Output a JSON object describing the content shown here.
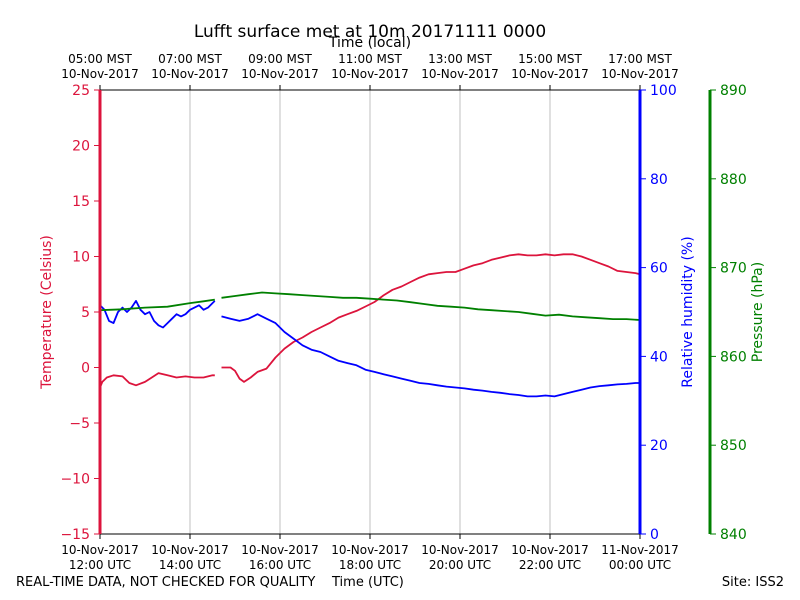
{
  "footer": {
    "disclaimer": "REAL-TIME DATA, NOT CHECKED FOR QUALITY",
    "site": "Site: ISS2"
  },
  "chart_data": {
    "type": "line",
    "title": "Lufft surface met at 10m 20171111 0000",
    "xlabel": "Time (UTC)",
    "x2label": "Time (local)",
    "ylabel": "Temperature (Celsius)",
    "y2label": "Relative humidity (%)",
    "y3label": "Pressure (hPa)",
    "xlim": [
      12,
      24
    ],
    "ylim": [
      -15,
      25
    ],
    "y2lim": [
      0,
      100
    ],
    "y3lim": [
      840,
      890
    ],
    "grid": "vertical",
    "colors": {
      "temperature": "#dc143c",
      "humidity": "#0000ff",
      "pressure": "#008000"
    },
    "x_ticks": [
      12,
      14,
      16,
      18,
      20,
      22,
      24
    ],
    "x_tick_labels": [
      [
        "10-Nov-2017",
        "12:00 UTC"
      ],
      [
        "10-Nov-2017",
        "14:00 UTC"
      ],
      [
        "10-Nov-2017",
        "16:00 UTC"
      ],
      [
        "10-Nov-2017",
        "18:00 UTC"
      ],
      [
        "10-Nov-2017",
        "20:00 UTC"
      ],
      [
        "10-Nov-2017",
        "22:00 UTC"
      ],
      [
        "11-Nov-2017",
        "00:00 UTC"
      ]
    ],
    "x2_tick_labels": [
      [
        "05:00 MST",
        "10-Nov-2017"
      ],
      [
        "07:00 MST",
        "10-Nov-2017"
      ],
      [
        "09:00 MST",
        "10-Nov-2017"
      ],
      [
        "11:00 MST",
        "10-Nov-2017"
      ],
      [
        "13:00 MST",
        "10-Nov-2017"
      ],
      [
        "15:00 MST",
        "10-Nov-2017"
      ],
      [
        "17:00 MST",
        "10-Nov-2017"
      ]
    ],
    "y_ticks": [
      -15,
      -10,
      -5,
      0,
      5,
      10,
      15,
      20,
      25
    ],
    "y_tick_labels": [
      "−15",
      "−10",
      "−5",
      "0",
      "5",
      "10",
      "15",
      "20",
      "25"
    ],
    "y2_ticks": [
      0,
      20,
      40,
      60,
      80,
      100
    ],
    "y2_tick_labels": [
      "0",
      "20",
      "40",
      "60",
      "80",
      "100"
    ],
    "y3_ticks": [
      840,
      850,
      860,
      870,
      880,
      890
    ],
    "y3_tick_labels": [
      "840",
      "850",
      "860",
      "870",
      "880",
      "890"
    ],
    "series": [
      {
        "name": "Temperature",
        "axis": "y",
        "segments": [
          {
            "x": [
              12.0,
              12.05,
              12.15,
              12.3,
              12.5,
              12.65,
              12.8,
              13.0,
              13.15,
              13.3,
              13.5,
              13.7,
              13.9,
              14.1,
              14.3,
              14.5,
              14.55
            ],
            "y": [
              -1.8,
              -1.3,
              -0.9,
              -0.7,
              -0.8,
              -1.4,
              -1.6,
              -1.3,
              -0.9,
              -0.5,
              -0.7,
              -0.9,
              -0.8,
              -0.9,
              -0.9,
              -0.7,
              -0.7
            ]
          },
          {
            "x": [
              14.7,
              14.9,
              15.0,
              15.1,
              15.2,
              15.35,
              15.5,
              15.7,
              15.9,
              16.1,
              16.3,
              16.5,
              16.7,
              16.9,
              17.1,
              17.3,
              17.5,
              17.7,
              17.9,
              18.1,
              18.3,
              18.5,
              18.7,
              18.9,
              19.1,
              19.3,
              19.5,
              19.7,
              19.9,
              20.1,
              20.3,
              20.5,
              20.7,
              20.9,
              21.1,
              21.3,
              21.5,
              21.7,
              21.9,
              22.1,
              22.3,
              22.5,
              22.7,
              22.9,
              23.1,
              23.3,
              23.5,
              23.7,
              23.9,
              24.0
            ],
            "y": [
              0.0,
              0.0,
              -0.3,
              -1.0,
              -1.3,
              -0.9,
              -0.4,
              -0.1,
              0.9,
              1.7,
              2.3,
              2.7,
              3.2,
              3.6,
              4.0,
              4.5,
              4.8,
              5.1,
              5.5,
              5.9,
              6.5,
              7.0,
              7.3,
              7.7,
              8.1,
              8.4,
              8.5,
              8.6,
              8.6,
              8.9,
              9.2,
              9.4,
              9.7,
              9.9,
              10.1,
              10.2,
              10.1,
              10.1,
              10.2,
              10.1,
              10.2,
              10.2,
              10.0,
              9.7,
              9.4,
              9.1,
              8.7,
              8.6,
              8.5,
              8.4
            ]
          }
        ]
      },
      {
        "name": "Relative humidity",
        "axis": "y2",
        "segments": [
          {
            "x": [
              12.0,
              12.1,
              12.2,
              12.3,
              12.4,
              12.5,
              12.6,
              12.7,
              12.8,
              12.9,
              13.0,
              13.1,
              13.2,
              13.3,
              13.4,
              13.5,
              13.6,
              13.7,
              13.8,
              13.9,
              14.0,
              14.1,
              14.2,
              14.3,
              14.4,
              14.5,
              14.55
            ],
            "y": [
              51.5,
              50.5,
              48.0,
              47.5,
              50.0,
              51.0,
              50.0,
              51.0,
              52.5,
              50.5,
              49.5,
              50.0,
              48.0,
              47.0,
              46.5,
              47.5,
              48.5,
              49.5,
              49.0,
              49.5,
              50.5,
              51.0,
              51.5,
              50.5,
              51.0,
              52.0,
              52.5
            ]
          },
          {
            "x": [
              14.7,
              14.9,
              15.1,
              15.3,
              15.5,
              15.7,
              15.9,
              16.1,
              16.3,
              16.5,
              16.7,
              16.9,
              17.1,
              17.3,
              17.5,
              17.7,
              17.9,
              18.1,
              18.3,
              18.5,
              18.7,
              18.9,
              19.1,
              19.3,
              19.5,
              19.7,
              19.9,
              20.1,
              20.3,
              20.5,
              20.7,
              20.9,
              21.1,
              21.3,
              21.5,
              21.7,
              21.9,
              22.1,
              22.3,
              22.5,
              22.7,
              22.9,
              23.1,
              23.3,
              23.5,
              23.7,
              23.9,
              24.0
            ],
            "y": [
              49.0,
              48.5,
              48.0,
              48.5,
              49.5,
              48.5,
              47.5,
              45.5,
              44.0,
              42.5,
              41.5,
              41.0,
              40.0,
              39.0,
              38.5,
              38.0,
              37.0,
              36.5,
              36.0,
              35.5,
              35.0,
              34.5,
              34.0,
              33.8,
              33.5,
              33.2,
              33.0,
              32.8,
              32.5,
              32.3,
              32.0,
              31.8,
              31.5,
              31.3,
              31.0,
              31.0,
              31.2,
              31.0,
              31.5,
              32.0,
              32.5,
              33.0,
              33.3,
              33.5,
              33.7,
              33.8,
              34.0,
              34.0
            ]
          }
        ]
      },
      {
        "name": "Pressure",
        "axis": "y3",
        "segments": [
          {
            "x": [
              12.0,
              12.5,
              13.0,
              13.5,
              14.0,
              14.3,
              14.55
            ],
            "y": [
              865.2,
              865.3,
              865.5,
              865.6,
              866.0,
              866.2,
              866.4
            ]
          },
          {
            "x": [
              14.7,
              15.0,
              15.3,
              15.6,
              15.9,
              16.2,
              16.5,
              16.8,
              17.1,
              17.4,
              17.7,
              18.0,
              18.3,
              18.6,
              18.9,
              19.2,
              19.5,
              19.8,
              20.1,
              20.4,
              20.7,
              21.0,
              21.3,
              21.6,
              21.9,
              22.2,
              22.5,
              22.8,
              23.1,
              23.4,
              23.7,
              24.0
            ],
            "y": [
              866.6,
              866.8,
              867.0,
              867.2,
              867.1,
              867.0,
              866.9,
              866.8,
              866.7,
              866.6,
              866.6,
              866.5,
              866.4,
              866.3,
              866.1,
              865.9,
              865.7,
              865.6,
              865.5,
              865.3,
              865.2,
              865.1,
              865.0,
              864.8,
              864.6,
              864.7,
              864.5,
              864.4,
              864.3,
              864.2,
              864.2,
              864.1
            ]
          }
        ]
      }
    ]
  }
}
